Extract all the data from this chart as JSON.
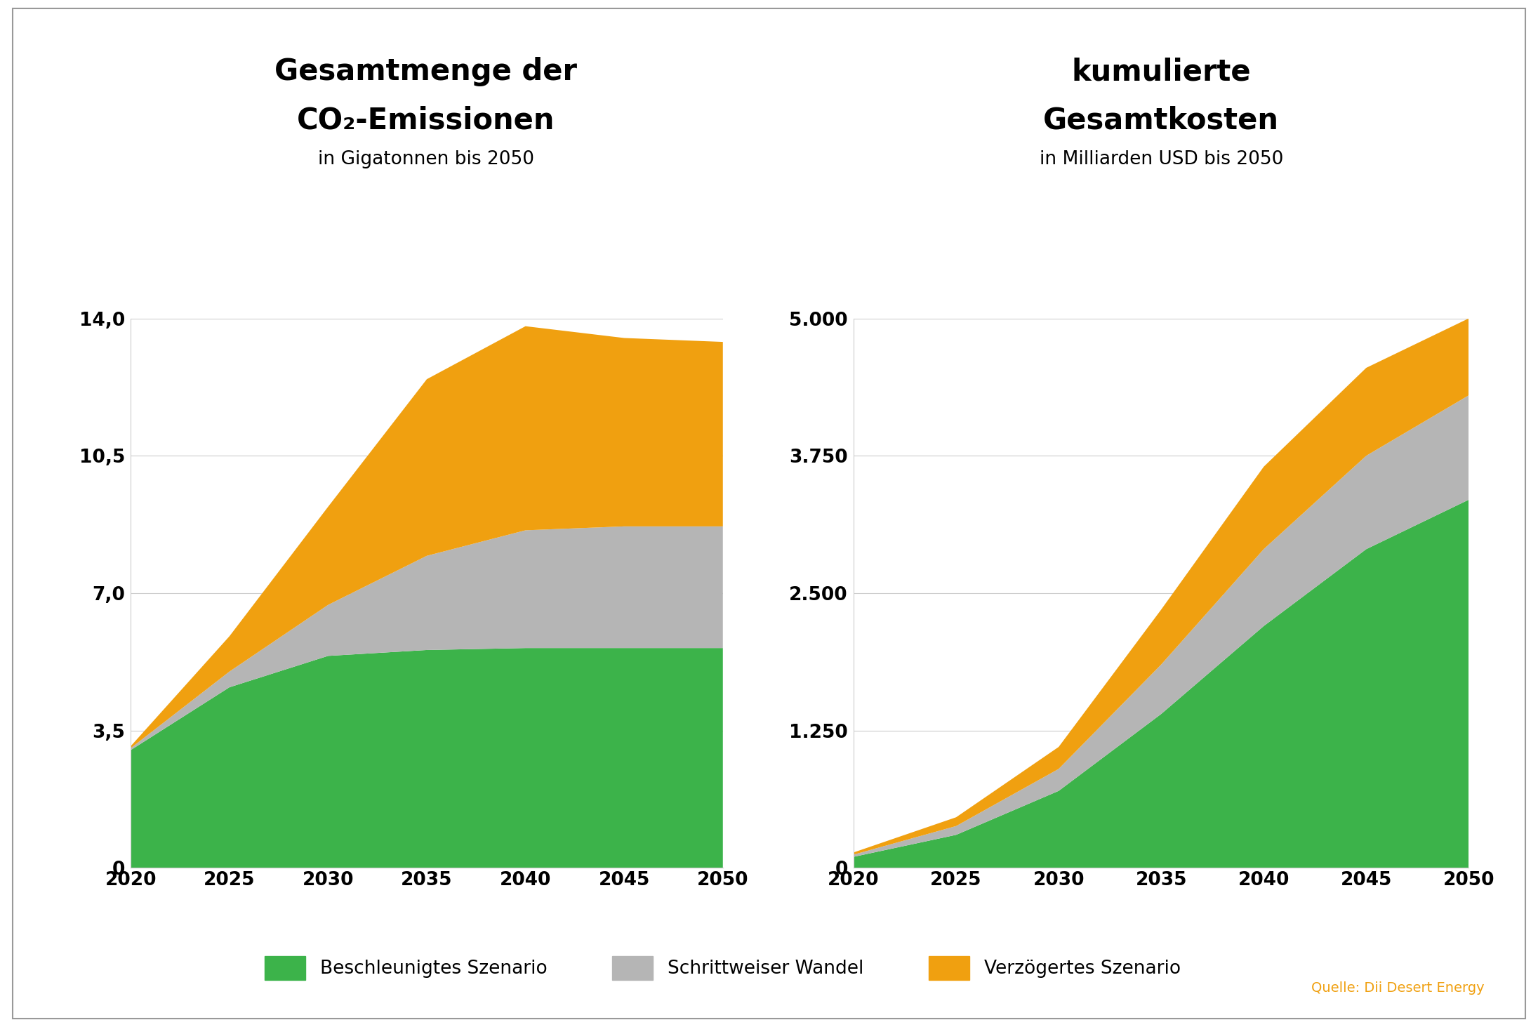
{
  "title1_line1": "Gesamtmenge der",
  "title1_line2": "CO₂-Emissionen",
  "subtitle1": "in Gigatonnen bis 2050",
  "title2_line1": "kumulierte",
  "title2_line2": "Gesamtkosten",
  "subtitle2": "in Milliarden USD bis 2050",
  "source": "Quelle: Dii Desert Energy",
  "x": [
    2020,
    2025,
    2030,
    2035,
    2040,
    2045,
    2050
  ],
  "left_green": [
    3.0,
    4.6,
    5.4,
    5.55,
    5.6,
    5.6,
    5.6
  ],
  "left_gray": [
    0.05,
    0.4,
    1.3,
    2.4,
    3.0,
    3.1,
    3.1
  ],
  "left_orange": [
    0.05,
    0.9,
    2.5,
    4.5,
    5.2,
    4.8,
    4.7
  ],
  "right_green": [
    100,
    300,
    700,
    1400,
    2200,
    2900,
    3350
  ],
  "right_gray": [
    20,
    80,
    200,
    450,
    700,
    850,
    950
  ],
  "right_orange": [
    20,
    80,
    200,
    500,
    750,
    800,
    700
  ],
  "left_yticks": [
    0,
    3.5,
    7.0,
    10.5,
    14.0
  ],
  "left_ytick_labels": [
    "0",
    "3,5",
    "7,0",
    "10,5",
    "14,0"
  ],
  "right_yticks": [
    0,
    1250,
    2500,
    3750,
    5000
  ],
  "right_ytick_labels": [
    "0",
    "1.250",
    "2.500",
    "3.750",
    "5.000"
  ],
  "xticks": [
    2020,
    2025,
    2030,
    2035,
    2040,
    2045,
    2050
  ],
  "color_green": "#3cb34a",
  "color_gray": "#b5b5b5",
  "color_orange": "#f0a010",
  "legend_labels": [
    "Beschleunigtes Szenario",
    "Schrittweiser Wandel",
    "Verzögertes Szenario"
  ],
  "title_fontsize": 30,
  "subtitle_fontsize": 19,
  "tick_fontsize": 19,
  "legend_fontsize": 19,
  "source_fontsize": 14,
  "background_color": "#ffffff",
  "border_color": "#999999"
}
